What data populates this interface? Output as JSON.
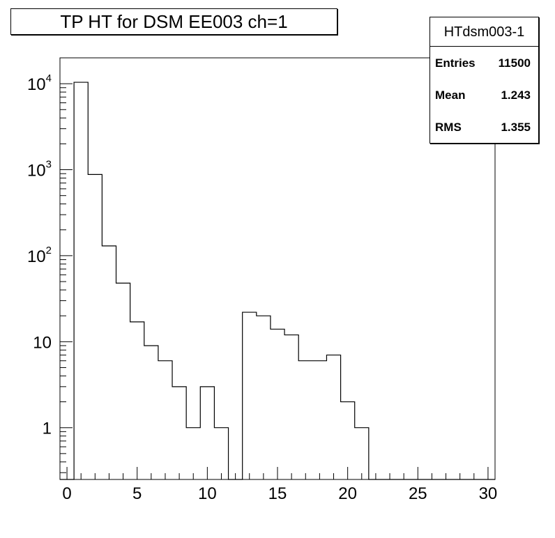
{
  "title": "TP HT for DSM EE003 ch=1",
  "stats": {
    "name": "HTdsm003-1",
    "rows": [
      {
        "label": "Entries",
        "value": "11500"
      },
      {
        "label": "Mean",
        "value": "1.243"
      },
      {
        "label": "RMS",
        "value": "1.355"
      }
    ]
  },
  "chart_data": {
    "type": "bar",
    "style": "step-histogram",
    "title": "TP HT for DSM EE003 ch=1",
    "xlabel": "",
    "ylabel": "",
    "xlim": [
      -0.5,
      30.5
    ],
    "ylim": [
      0.25,
      20000
    ],
    "yscale": "log",
    "bin_width": 1,
    "x_ticks": [
      "0",
      "5",
      "10",
      "15",
      "20",
      "25",
      "30"
    ],
    "y_ticks": [
      {
        "label": "1",
        "value": 1
      },
      {
        "label": "10",
        "value": 10
      },
      {
        "label": "10",
        "sup": "2",
        "value": 100
      },
      {
        "label": "10",
        "sup": "3",
        "value": 1000
      },
      {
        "label": "10",
        "sup": "4",
        "value": 10000
      }
    ],
    "bins": [
      {
        "x": 0,
        "count": 0
      },
      {
        "x": 1,
        "count": 10400
      },
      {
        "x": 2,
        "count": 880
      },
      {
        "x": 3,
        "count": 130
      },
      {
        "x": 4,
        "count": 48
      },
      {
        "x": 5,
        "count": 17
      },
      {
        "x": 6,
        "count": 9
      },
      {
        "x": 7,
        "count": 6
      },
      {
        "x": 8,
        "count": 3
      },
      {
        "x": 9,
        "count": 1
      },
      {
        "x": 10,
        "count": 3
      },
      {
        "x": 11,
        "count": 1
      },
      {
        "x": 12,
        "count": 0
      },
      {
        "x": 13,
        "count": 22
      },
      {
        "x": 14,
        "count": 20
      },
      {
        "x": 15,
        "count": 14
      },
      {
        "x": 16,
        "count": 12
      },
      {
        "x": 17,
        "count": 6
      },
      {
        "x": 18,
        "count": 6
      },
      {
        "x": 19,
        "count": 7
      },
      {
        "x": 20,
        "count": 2
      },
      {
        "x": 21,
        "count": 1
      },
      {
        "x": 22,
        "count": 0
      },
      {
        "x": 23,
        "count": 0
      },
      {
        "x": 24,
        "count": 0
      },
      {
        "x": 25,
        "count": 0
      },
      {
        "x": 26,
        "count": 0
      },
      {
        "x": 27,
        "count": 0
      },
      {
        "x": 28,
        "count": 0
      },
      {
        "x": 29,
        "count": 0
      },
      {
        "x": 30,
        "count": 0
      }
    ]
  }
}
